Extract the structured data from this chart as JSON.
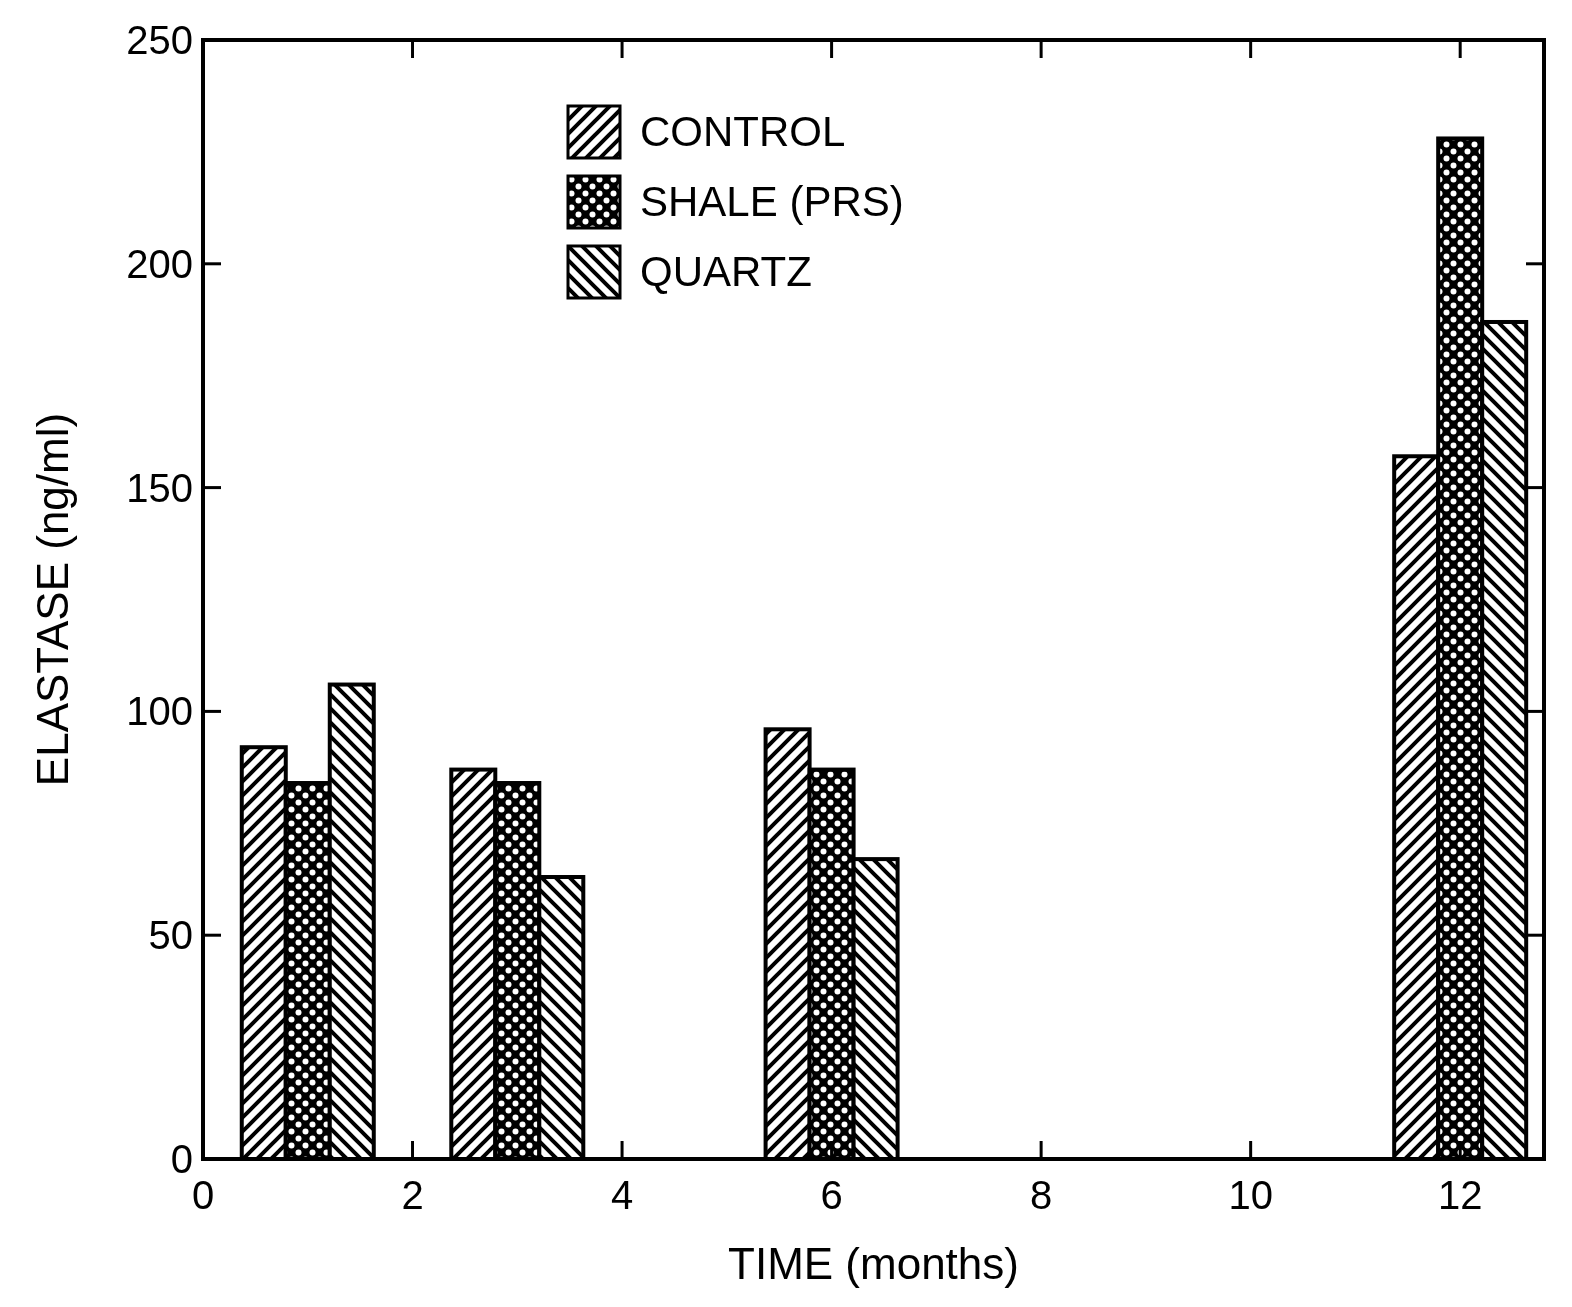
{
  "chart_data": {
    "type": "bar",
    "xlabel": "TIME (months)",
    "ylabel": "ELASTASE (ng/ml)",
    "x": [
      1,
      3,
      6,
      12
    ],
    "series": [
      {
        "name": "CONTROL",
        "color": "#000000",
        "values": [
          92,
          87,
          96,
          157
        ]
      },
      {
        "name": "SHALE (PRS)",
        "color": "#000000",
        "values": [
          84,
          84,
          87,
          228
        ]
      },
      {
        "name": "QUARTZ",
        "color": "#000000",
        "values": [
          106,
          63,
          67,
          187
        ]
      }
    ],
    "xlim": [
      0,
      12.8
    ],
    "xticks": [
      0,
      2,
      4,
      6,
      8,
      10,
      12
    ],
    "ylim": [
      0,
      250
    ],
    "yticks": [
      0,
      50,
      100,
      150,
      200,
      250
    ],
    "grid": false,
    "legend": "top"
  }
}
